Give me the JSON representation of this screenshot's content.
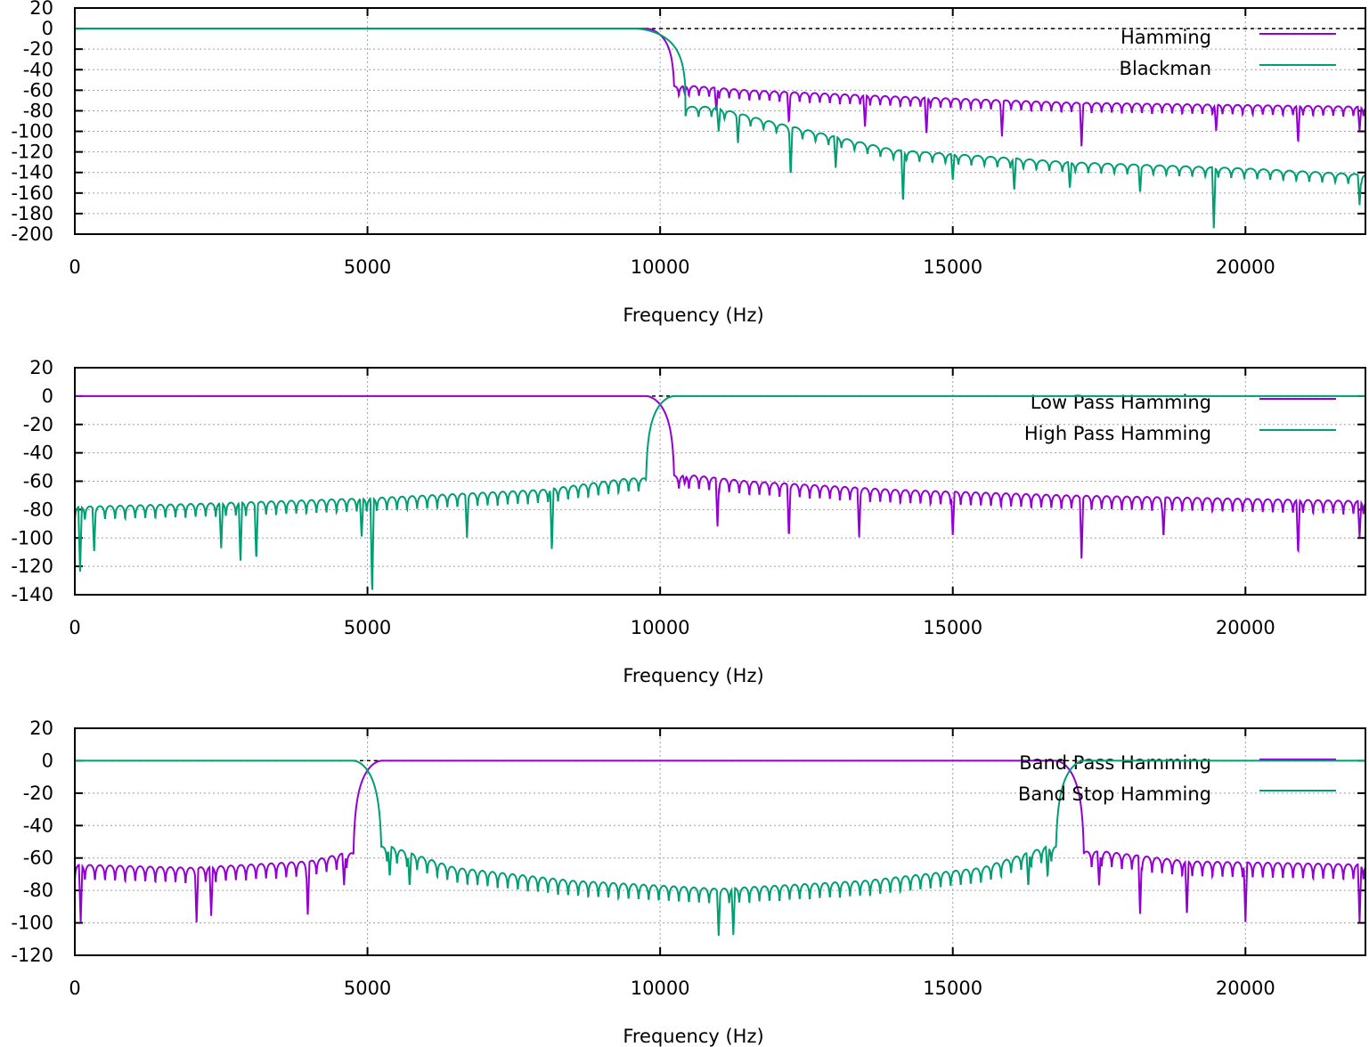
{
  "chart_data": [
    {
      "type": "line",
      "xlabel": "Frequency (Hz)",
      "ylabel": "",
      "xlim": [
        0,
        22050
      ],
      "ylim": [
        -200,
        20
      ],
      "xticks": [
        0,
        5000,
        10000,
        15000,
        20000
      ],
      "yticks": [
        20,
        0,
        -20,
        -40,
        -60,
        -80,
        -100,
        -120,
        -140,
        -160,
        -180,
        -200
      ],
      "grid": true,
      "legend_position": "top-right",
      "reference_line_y": 0,
      "series": [
        {
          "name": "Hamming",
          "color": "#9400d3",
          "response": "lowpass",
          "edges": [
            10000
          ],
          "transition_hz": 500,
          "ripple_spacing_hz": 172,
          "sidelobe_points": [
            [
              10600,
              -56
            ],
            [
              11500,
              -60
            ],
            [
              14000,
              -66
            ],
            [
              17000,
              -72
            ],
            [
              22050,
              -76
            ]
          ],
          "deep_nulls": [
            [
              10420,
              -63
            ],
            [
              10960,
              -80
            ],
            [
              12200,
              -92
            ],
            [
              13500,
              -96
            ],
            [
              14550,
              -104
            ],
            [
              15840,
              -106
            ],
            [
              17200,
              -116
            ],
            [
              19500,
              -100
            ],
            [
              20900,
              -112
            ],
            [
              21950,
              -100
            ]
          ]
        },
        {
          "name": "Blackman",
          "color": "#009e73",
          "response": "lowpass",
          "edges": [
            10000
          ],
          "transition_hz": 900,
          "ripple_spacing_hz": 222,
          "sidelobe_points": [
            [
              10900,
              -76
            ],
            [
              12000,
              -92
            ],
            [
              14000,
              -118
            ],
            [
              17000,
              -130
            ],
            [
              20000,
              -136
            ],
            [
              22050,
              -142
            ]
          ],
          "deep_nulls": [
            [
              11000,
              -100
            ],
            [
              11330,
              -112
            ],
            [
              12230,
              -144
            ],
            [
              13000,
              -136
            ],
            [
              14150,
              -170
            ],
            [
              15000,
              -148
            ],
            [
              16050,
              -158
            ],
            [
              17000,
              -156
            ],
            [
              18200,
              -160
            ],
            [
              19460,
              -196
            ],
            [
              21950,
              -172
            ]
          ]
        }
      ]
    },
    {
      "type": "line",
      "xlabel": "Frequency (Hz)",
      "ylabel": "",
      "xlim": [
        0,
        22050
      ],
      "ylim": [
        -140,
        20
      ],
      "xticks": [
        0,
        5000,
        10000,
        15000,
        20000
      ],
      "yticks": [
        20,
        0,
        -20,
        -40,
        -60,
        -80,
        -100,
        -120,
        -140
      ],
      "grid": true,
      "legend_position": "top-right",
      "reference_line_y": 0,
      "series": [
        {
          "name": "Low Pass Hamming",
          "color": "#9400d3",
          "response": "lowpass",
          "edges": [
            10000
          ],
          "transition_hz": 500,
          "ripple_spacing_hz": 172,
          "sidelobe_points": [
            [
              10600,
              -56
            ],
            [
              11500,
              -60
            ],
            [
              14000,
              -66
            ],
            [
              17000,
              -70
            ],
            [
              22050,
              -74
            ]
          ],
          "deep_nulls": [
            [
              10420,
              -62
            ],
            [
              10980,
              -92
            ],
            [
              12200,
              -100
            ],
            [
              13400,
              -100
            ],
            [
              15000,
              -99
            ],
            [
              17200,
              -116
            ],
            [
              18600,
              -100
            ],
            [
              20900,
              -112
            ],
            [
              21950,
              -100
            ]
          ]
        },
        {
          "name": "High Pass Hamming",
          "color": "#009e73",
          "response": "highpass",
          "edges": [
            10000
          ],
          "transition_hz": 500,
          "ripple_spacing_hz": 172,
          "sidelobe_points": [
            [
              0,
              -78
            ],
            [
              2000,
              -76
            ],
            [
              5000,
              -72
            ],
            [
              8000,
              -66
            ],
            [
              9450,
              -58
            ]
          ],
          "deep_nulls": [
            [
              90,
              -124
            ],
            [
              330,
              -110
            ],
            [
              2500,
              -108
            ],
            [
              2830,
              -118
            ],
            [
              3100,
              -116
            ],
            [
              4900,
              -100
            ],
            [
              5080,
              -140
            ],
            [
              6700,
              -100
            ],
            [
              8150,
              -110
            ]
          ]
        }
      ]
    },
    {
      "type": "line",
      "xlabel": "Frequency (Hz)",
      "ylabel": "",
      "xlim": [
        0,
        22050
      ],
      "ylim": [
        -120,
        20
      ],
      "xticks": [
        0,
        5000,
        10000,
        15000,
        20000
      ],
      "yticks": [
        20,
        0,
        -20,
        -40,
        -60,
        -80,
        -100,
        -120
      ],
      "grid": true,
      "legend_position": "top-right",
      "reference_line_y": 0,
      "series": [
        {
          "name": "Band Pass Hamming",
          "color": "#9400d3",
          "response": "bandpass",
          "edges": [
            5000,
            17000
          ],
          "transition_hz": 500,
          "ripple_spacing_hz": 172,
          "sidelobe_points": [
            [
              0,
              -64
            ],
            [
              2000,
              -66
            ],
            [
              4000,
              -62
            ],
            [
              4600,
              -57
            ],
            [
              17600,
              -56
            ],
            [
              19000,
              -62
            ],
            [
              22050,
              -64
            ]
          ],
          "deep_nulls": [
            [
              100,
              -100
            ],
            [
              2080,
              -100
            ],
            [
              2330,
              -96
            ],
            [
              3980,
              -96
            ],
            [
              4600,
              -77
            ],
            [
              17500,
              -77
            ],
            [
              18200,
              -96
            ],
            [
              19000,
              -96
            ],
            [
              20000,
              -100
            ],
            [
              21950,
              -100
            ]
          ]
        },
        {
          "name": "Band Stop Hamming",
          "color": "#009e73",
          "response": "bandstop",
          "edges": [
            5000,
            17000
          ],
          "transition_hz": 500,
          "ripple_spacing_hz": 172,
          "sidelobe_points": [
            [
              5400,
              -53
            ],
            [
              6500,
              -66
            ],
            [
              8500,
              -74
            ],
            [
              11000,
              -79
            ],
            [
              13500,
              -74
            ],
            [
              15500,
              -66
            ],
            [
              16600,
              -53
            ]
          ],
          "deep_nulls": [
            [
              5380,
              -72
            ],
            [
              5720,
              -78
            ],
            [
              11000,
              -108
            ],
            [
              11250,
              -108
            ],
            [
              16620,
              -72
            ],
            [
              16290,
              -78
            ]
          ]
        }
      ]
    }
  ]
}
